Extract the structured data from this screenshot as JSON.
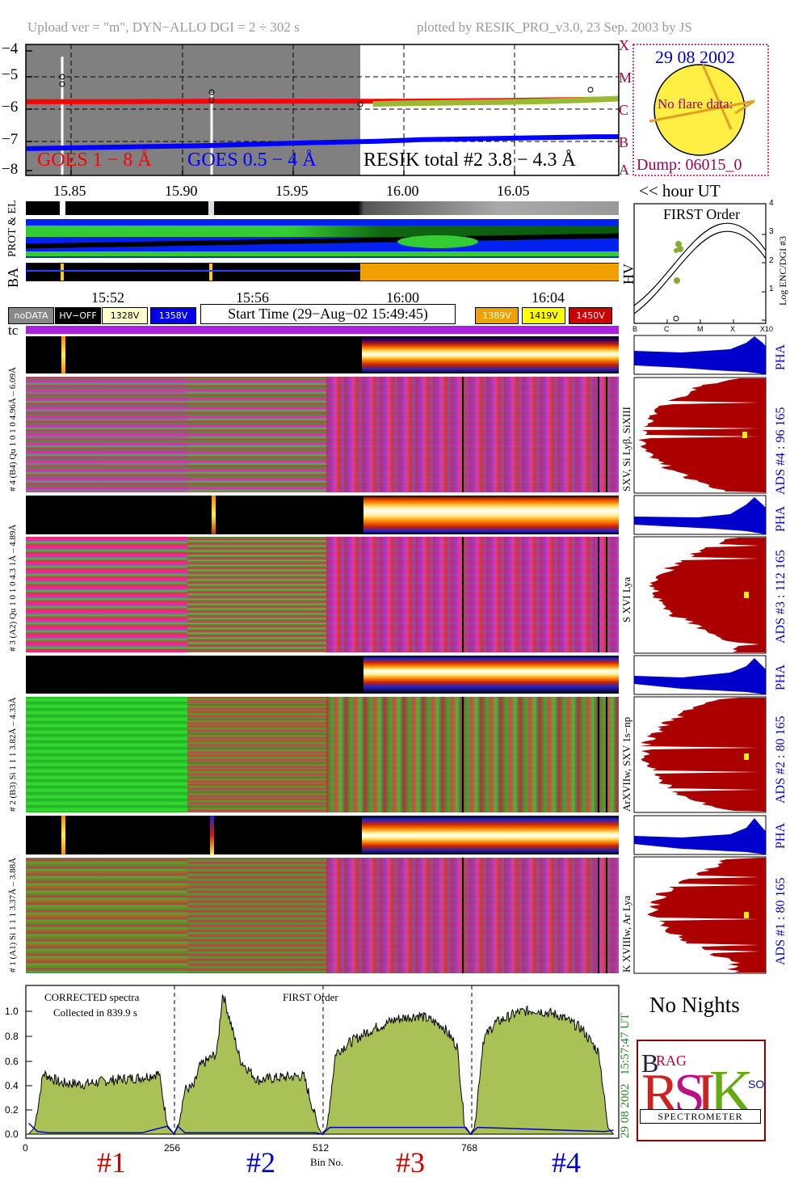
{
  "header": {
    "left": "Upload ver = \"m\", DYN−ALLO DGI =   2 ÷ 302 s",
    "right": "plotted by RESIK_PRO_v3.0, 23 Sep. 2003 by JS"
  },
  "goes": {
    "yticks": [
      "−4",
      "−5",
      "−6",
      "−7",
      "−8"
    ],
    "classes": [
      "X",
      "M",
      "C",
      "B",
      "A"
    ],
    "legend_long": "GOES 1 − 8 Å",
    "legend_short": "GOES 0.5 − 4 Å",
    "legend_resik": "RESIK total #2  3.8 − 4.3 Å",
    "xticks": [
      "15.85",
      "15.90",
      "15.95",
      "16.00",
      "16.05"
    ],
    "xunit": "<< hour UT",
    "colors": {
      "long": "#ff0000",
      "short": "#0000ff",
      "resik": "#99bb33"
    }
  },
  "sun": {
    "date": "29 08 2002",
    "note": "No flare data:",
    "dump": "Dump: 06015_0"
  },
  "strip_labels": {
    "prot": "PROT & EL",
    "ba": "BA",
    "hv": "HV"
  },
  "first_order": {
    "title": "FIRST Order",
    "ylabel": "Log ENC/DGI #3",
    "yticks": [
      "1",
      "2",
      "3",
      "4"
    ],
    "xticks": [
      "B",
      "C",
      "M",
      "X",
      "X10"
    ]
  },
  "time_axis": {
    "ticks": [
      "15:52",
      "15:56",
      "16:00",
      "16:04"
    ]
  },
  "status": {
    "nodata": "noDATA",
    "hvoff": "HV−OFF",
    "v1328": "1328V",
    "v1358": "1358V",
    "start_time": "Start Time (29−Aug−02 15:49:45)",
    "v1389": "1389V",
    "v1419": "1419V",
    "v1450": "1450V",
    "tc": "tc"
  },
  "channels": [
    {
      "pha_axis": "# 4 (B4) Qu 1 0 1 0 4.96Å – 6.09Å",
      "lines": "SXV, Si Lyβ, SiXIII",
      "ads": "ADS #4 :   96 165",
      "pha": "PHA"
    },
    {
      "pha_axis": "# 3 (A2) Qu 1 0 1 0 4.3 1Å – 4.89Å",
      "lines": "S XVI Lya",
      "ads": "ADS #3 :  112 165",
      "pha": "PHA"
    },
    {
      "pha_axis": "# 2 (B3) Si 1 1 1 3.82Å – 4.33Å",
      "lines": "ArXVIIw, SXV 1s−np",
      "ads": "ADS #2 :   80 165",
      "pha": "PHA"
    },
    {
      "pha_axis": "# 1 (A1) Si 1 1 1 3.37Å – 3.88Å",
      "lines": "K XVIIIw, Ar Lya",
      "ads": "ADS #1 :   80 165",
      "pha": "PHA"
    }
  ],
  "spectrum": {
    "title_left": "CORRECTED spectra",
    "collected": "Collected in   839.9 s",
    "title_mid": "FIRST Order",
    "yticks": [
      "0.0",
      "0.2",
      "0.4",
      "0.6",
      "0.8",
      "1.0"
    ],
    "xticks": [
      "0",
      "256",
      "512",
      "768"
    ],
    "xlabel": "Bin No.",
    "time": "15:57:47 UT",
    "date": "29 08 2002",
    "groups": [
      "#1",
      "#2",
      "#3",
      "#4"
    ],
    "group_colors": [
      "#cc0000",
      "#0000cc",
      "#cc0000",
      "#0000cc"
    ]
  },
  "no_nights": "No Nights",
  "logo": {
    "spectrometer": "SPECTROMETER"
  },
  "chart_data": [
    {
      "type": "line",
      "title": "",
      "xlabel": "<< hour UT",
      "ylabel": "",
      "xlim": [
        15.82,
        16.09
      ],
      "ylim": [
        -8.2,
        -3.8
      ],
      "series": [
        {
          "name": "GOES 1 − 8 Å",
          "x": [
            15.82,
            15.86,
            15.9,
            15.94,
            15.98,
            16.0,
            16.04,
            16.08,
            16.09
          ],
          "y": [
            -5.72,
            -5.72,
            -5.71,
            -5.71,
            -5.71,
            -5.7,
            -5.68,
            -5.64,
            -5.62
          ]
        },
        {
          "name": "GOES 0.5 − 4 Å",
          "x": [
            15.82,
            15.86,
            15.9,
            15.94,
            15.98,
            16.0,
            16.04,
            16.08,
            16.09
          ],
          "y": [
            -7.3,
            -7.25,
            -7.2,
            -7.12,
            -7.05,
            -7.0,
            -6.95,
            -6.9,
            -6.9
          ]
        },
        {
          "name": "RESIK total #2  3.8 − 4.3 Å",
          "x": [
            15.978,
            15.99,
            16.0,
            16.02,
            16.04,
            16.06,
            16.08,
            16.09
          ],
          "y": [
            -5.8,
            -5.78,
            -5.77,
            -5.75,
            -5.73,
            -5.7,
            -5.65,
            -5.62
          ]
        }
      ]
    },
    {
      "type": "line",
      "title": "FIRST Order",
      "xlabel": "",
      "ylabel": "Log ENC/DGI #3",
      "xlim": [
        0,
        4
      ],
      "ylim": [
        0,
        4
      ],
      "series": [
        {
          "name": "",
          "x": [
            0,
            0.5,
            1,
            1.5,
            2,
            2.5,
            3,
            3.5,
            4
          ],
          "y": [
            0.5,
            1.2,
            2.0,
            2.6,
            3.0,
            2.9,
            2.5,
            1.9,
            1.3
          ]
        }
      ]
    },
    {
      "type": "area",
      "title": "CORRECTED spectra",
      "xlabel": "Bin No.",
      "ylabel": "",
      "xlim": [
        0,
        1024
      ],
      "ylim": [
        0,
        1.1
      ],
      "series": [
        {
          "name": "",
          "x": [
            5,
            15,
            30,
            60,
            100,
            150,
            200,
            230,
            245,
            256,
            262,
            275,
            290,
            300,
            330,
            340,
            370,
            400,
            440,
            480,
            505,
            512,
            520,
            535,
            560,
            600,
            640,
            680,
            720,
            745,
            758,
            768,
            775,
            790,
            810,
            850,
            880,
            920,
            960,
            990,
            1005,
            1015
          ],
          "y": [
            0.0,
            0.05,
            0.45,
            0.38,
            0.37,
            0.4,
            0.42,
            0.45,
            0.05,
            0.0,
            0.05,
            0.33,
            0.35,
            0.5,
            0.6,
            1.05,
            0.55,
            0.4,
            0.42,
            0.43,
            0.05,
            0.0,
            0.05,
            0.6,
            0.68,
            0.78,
            0.85,
            0.88,
            0.8,
            0.65,
            0.05,
            0.0,
            0.05,
            0.7,
            0.82,
            0.9,
            0.92,
            0.88,
            0.78,
            0.6,
            0.05,
            0.0
          ]
        }
      ]
    }
  ]
}
